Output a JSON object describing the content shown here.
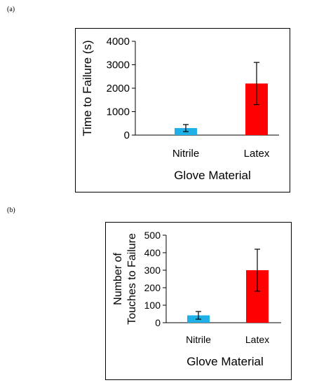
{
  "panels": [
    {
      "label": "(a)"
    },
    {
      "label": "(b)"
    }
  ],
  "chart_data": [
    {
      "type": "bar",
      "title": "",
      "categories": [
        "Nitrile",
        "Latex"
      ],
      "values": [
        300,
        2200
      ],
      "errors": [
        150,
        900
      ],
      "colors": [
        "#1fb0e8",
        "#ff0000"
      ],
      "xlabel": "Glove Material",
      "ylabel": "Time to Failure (s)",
      "ylim": [
        0,
        4000
      ],
      "yticks": [
        "0",
        "1000",
        "2000",
        "3000",
        "4000"
      ],
      "grid": false,
      "legend": "none"
    },
    {
      "type": "bar",
      "title": "",
      "categories": [
        "Nitrile",
        "Latex"
      ],
      "values": [
        42,
        300
      ],
      "errors": [
        22,
        120
      ],
      "colors": [
        "#1fb0e8",
        "#ff0000"
      ],
      "xlabel": "Glove Material",
      "ylabel_lines": [
        "Number of",
        "Touches to Failure"
      ],
      "ylim": [
        0,
        500
      ],
      "yticks": [
        "0",
        "100",
        "200",
        "300",
        "400",
        "500"
      ],
      "grid": false,
      "legend": "none"
    }
  ]
}
